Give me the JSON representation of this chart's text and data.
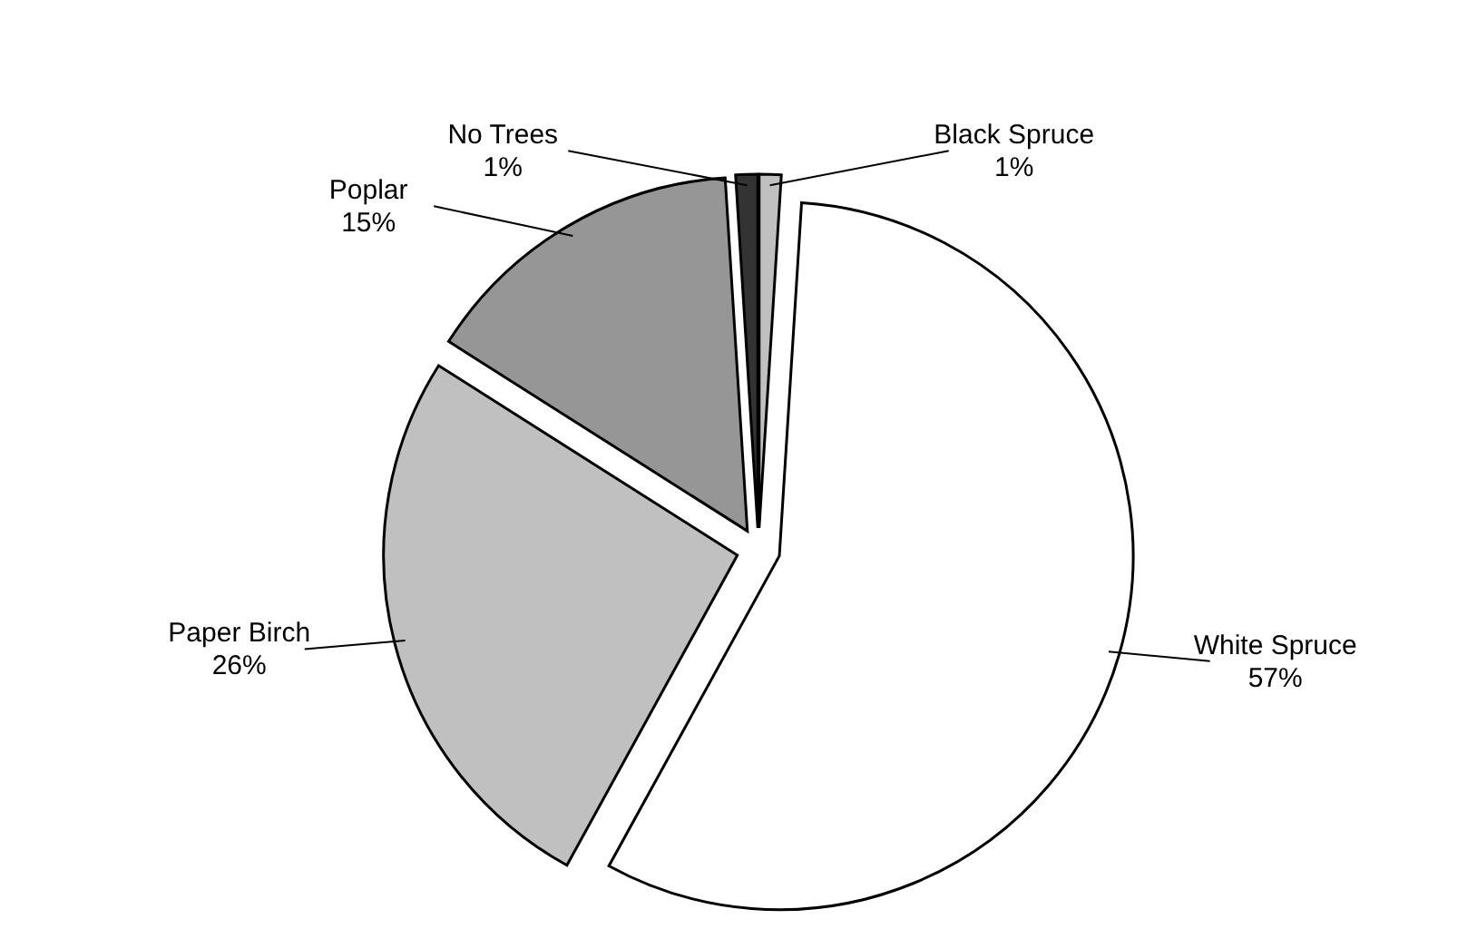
{
  "chart_data": {
    "type": "pie",
    "categories": [
      "Black Spruce",
      "White Spruce",
      "Paper Birch",
      "Poplar",
      "No Trees"
    ],
    "values": [
      1,
      57,
      26,
      15,
      1
    ],
    "value_labels": [
      "1%",
      "57%",
      "26%",
      "15%",
      "1%"
    ],
    "colors": [
      "#c0c0c0",
      "#ffffff",
      "#c0c0c0",
      "#969696",
      "#333333"
    ]
  }
}
